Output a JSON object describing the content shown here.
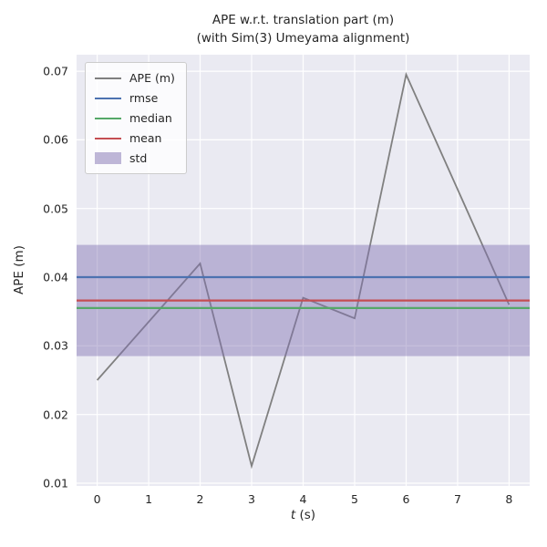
{
  "title": {
    "line1": "APE w.r.t. translation part (m)",
    "line2": "(with Sim(3) Umeyama alignment)"
  },
  "axes": {
    "ylabel": "APE (m)",
    "xlabel_var": "t",
    "xlabel_unit": " (s)"
  },
  "legend": {
    "entries": [
      {
        "label": "APE (m)",
        "type": "line",
        "color": "#808080"
      },
      {
        "label": "rmse",
        "type": "line",
        "color": "#4c72b0"
      },
      {
        "label": "median",
        "type": "line",
        "color": "#55a868"
      },
      {
        "label": "mean",
        "type": "line",
        "color": "#c44e52"
      },
      {
        "label": "std",
        "type": "band",
        "color": "#8172b2"
      }
    ]
  },
  "chart_data": {
    "type": "line",
    "title": "APE w.r.t. translation part (m)\n(with Sim(3) Umeyama alignment)",
    "xlabel": "t (s)",
    "ylabel": "APE (m)",
    "x": [
      0,
      1,
      2,
      3,
      4,
      5,
      6,
      7,
      8
    ],
    "series": [
      {
        "name": "APE (m)",
        "color": "#808080",
        "values": [
          0.025,
          0.0335,
          0.042,
          0.0125,
          0.037,
          0.034,
          0.0695,
          0.0528,
          0.036
        ]
      }
    ],
    "stat_lines": [
      {
        "name": "rmse",
        "value": 0.04,
        "color": "#4c72b0"
      },
      {
        "name": "median",
        "value": 0.0355,
        "color": "#55a868"
      },
      {
        "name": "mean",
        "value": 0.0366,
        "color": "#c44e52"
      }
    ],
    "std_band": {
      "name": "std",
      "lower": 0.0285,
      "upper": 0.0447,
      "color": "#8172b2",
      "alpha": 0.45
    },
    "xlim": [
      -0.4,
      8.4
    ],
    "ylim": [
      0.0096,
      0.0724
    ],
    "xticks": [
      0,
      1,
      2,
      3,
      4,
      5,
      6,
      7,
      8
    ],
    "yticks": [
      0.01,
      0.02,
      0.03,
      0.04,
      0.05,
      0.06,
      0.07
    ],
    "grid": true,
    "grid_color": "#ffffff",
    "plot_background": "#eaeaf2",
    "legend_position": "upper left"
  }
}
